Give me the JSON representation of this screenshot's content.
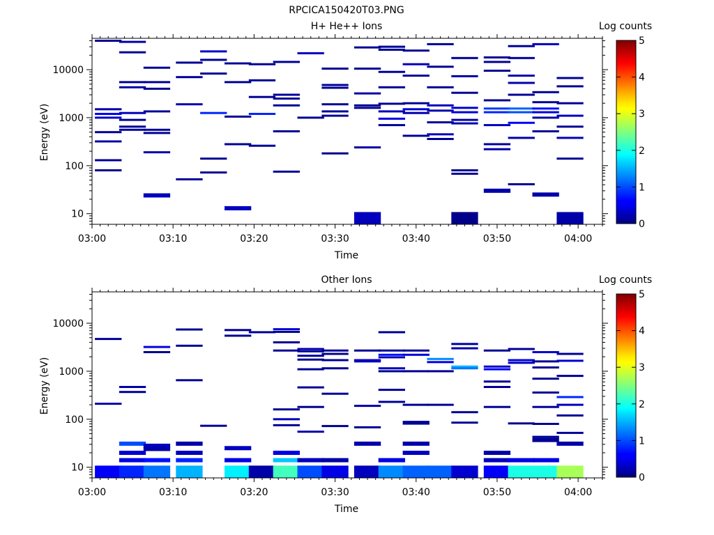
{
  "figure": {
    "title": "RPCICA150420T03.PNG"
  },
  "colorbar": {
    "label": "Log counts",
    "ticks": [
      "0",
      "1",
      "2",
      "3",
      "4",
      "5"
    ],
    "range": [
      0,
      5
    ],
    "colormap": "jet"
  },
  "chart_data": [
    {
      "type": "heatmap",
      "title": "H+ He++ Ions",
      "xlabel": "Time",
      "ylabel": "Energy (eV)",
      "yscale": "log",
      "ylim": [
        6,
        45000
      ],
      "xlim": [
        "03:00",
        "04:03"
      ],
      "x_ticks": [
        "03:00",
        "03:10",
        "03:20",
        "03:30",
        "03:40",
        "03:50",
        "04:00"
      ],
      "y_ticks": [
        "10",
        "100",
        "1000",
        "10000"
      ],
      "time_bins": [
        "03:02",
        "03:05",
        "03:08",
        "03:12",
        "03:15",
        "03:18",
        "03:21",
        "03:24",
        "03:27",
        "03:30",
        "03:34",
        "03:37",
        "03:40",
        "03:43",
        "03:46",
        "03:50",
        "03:53",
        "03:56",
        "03:59",
        "04:02"
      ],
      "cells": [
        [
          0,
          40000,
          0.1
        ],
        [
          0,
          1500,
          0.2
        ],
        [
          0,
          1200,
          0.6
        ],
        [
          0,
          1000,
          0.4
        ],
        [
          0,
          500,
          0.1
        ],
        [
          0,
          320,
          0.2
        ],
        [
          0,
          130,
          0.1
        ],
        [
          0,
          80,
          0.05
        ],
        [
          1,
          38000,
          0.2
        ],
        [
          1,
          23000,
          0.1
        ],
        [
          1,
          5500,
          0.1
        ],
        [
          1,
          4300,
          0.2
        ],
        [
          1,
          1250,
          0.3
        ],
        [
          1,
          900,
          0.1
        ],
        [
          1,
          650,
          0.1
        ],
        [
          1,
          560,
          0.2
        ],
        [
          2,
          11000,
          0.1
        ],
        [
          2,
          5500,
          0.1
        ],
        [
          2,
          4000,
          0.1
        ],
        [
          2,
          1350,
          0.1
        ],
        [
          2,
          560,
          0.1
        ],
        [
          2,
          480,
          0.1
        ],
        [
          2,
          190,
          0.2
        ],
        [
          2,
          24,
          0.3
        ],
        [
          3,
          14000,
          0.1
        ],
        [
          3,
          7000,
          0.1
        ],
        [
          3,
          1900,
          0.2
        ],
        [
          3,
          52,
          0.1
        ],
        [
          4,
          24000,
          0.4
        ],
        [
          4,
          16000,
          0.1
        ],
        [
          4,
          8300,
          0.1
        ],
        [
          4,
          1250,
          0.8
        ],
        [
          4,
          140,
          0.1
        ],
        [
          4,
          72,
          0.1
        ],
        [
          5,
          13500,
          0.1
        ],
        [
          5,
          5500,
          0.1
        ],
        [
          5,
          1050,
          0.1
        ],
        [
          5,
          280,
          0.1
        ],
        [
          5,
          13,
          0.3
        ],
        [
          6,
          13000,
          0.1
        ],
        [
          6,
          6000,
          0.1
        ],
        [
          6,
          2700,
          0.1
        ],
        [
          6,
          1200,
          0.8
        ],
        [
          6,
          260,
          0.1
        ],
        [
          7,
          14500,
          0.1
        ],
        [
          7,
          3000,
          0.1
        ],
        [
          7,
          2500,
          0.1
        ],
        [
          7,
          1800,
          0.1
        ],
        [
          7,
          520,
          0.1
        ],
        [
          7,
          75,
          0.1
        ],
        [
          8,
          22000,
          0.3
        ],
        [
          8,
          1000,
          0.1
        ],
        [
          9,
          10500,
          0.1
        ],
        [
          9,
          4800,
          0.1
        ],
        [
          9,
          4200,
          0.1
        ],
        [
          9,
          1900,
          0.1
        ],
        [
          9,
          1350,
          0.1
        ],
        [
          9,
          1100,
          0.1
        ],
        [
          9,
          180,
          0.05
        ],
        [
          10,
          29000,
          0.1
        ],
        [
          10,
          10500,
          0.1
        ],
        [
          10,
          3200,
          0.2
        ],
        [
          10,
          1800,
          0.1
        ],
        [
          10,
          1600,
          0.1
        ],
        [
          10,
          240,
          0.2
        ],
        [
          10,
          8.5,
          0.3
        ],
        [
          11,
          30000,
          0.1
        ],
        [
          11,
          26000,
          0.1
        ],
        [
          11,
          9000,
          0.1
        ],
        [
          11,
          4300,
          0.1
        ],
        [
          11,
          1950,
          0.1
        ],
        [
          11,
          1350,
          0.3
        ],
        [
          11,
          950,
          0.5
        ],
        [
          11,
          700,
          0.1
        ],
        [
          12,
          25000,
          0.1
        ],
        [
          12,
          13000,
          0.3
        ],
        [
          12,
          7500,
          0.1
        ],
        [
          12,
          2000,
          0.1
        ],
        [
          12,
          1500,
          0.4
        ],
        [
          12,
          1250,
          0.2
        ],
        [
          12,
          420,
          0.1
        ],
        [
          13,
          34000,
          0.1
        ],
        [
          13,
          11500,
          0.1
        ],
        [
          13,
          4300,
          0.1
        ],
        [
          13,
          1800,
          0.3
        ],
        [
          13,
          1400,
          0.2
        ],
        [
          13,
          800,
          0.1
        ],
        [
          13,
          450,
          0.3
        ],
        [
          13,
          360,
          0.1
        ],
        [
          14,
          17500,
          0.1
        ],
        [
          14,
          7300,
          0.2
        ],
        [
          14,
          3300,
          0.1
        ],
        [
          14,
          1600,
          0.4
        ],
        [
          14,
          1300,
          0.5
        ],
        [
          14,
          900,
          0.2
        ],
        [
          14,
          760,
          0.2
        ],
        [
          14,
          80,
          0.1
        ],
        [
          14,
          68,
          0.1
        ],
        [
          14,
          8.5,
          0.05
        ],
        [
          15,
          18000,
          0.1
        ],
        [
          15,
          14500,
          0.1
        ],
        [
          15,
          9500,
          0.1
        ],
        [
          15,
          2300,
          0.1
        ],
        [
          15,
          1550,
          0.9
        ],
        [
          15,
          1300,
          0.8
        ],
        [
          15,
          700,
          0.3
        ],
        [
          15,
          280,
          0.1
        ],
        [
          15,
          220,
          0.2
        ],
        [
          15,
          30,
          0.2
        ],
        [
          16,
          31000,
          0.1
        ],
        [
          16,
          17500,
          0.1
        ],
        [
          16,
          7500,
          0.2
        ],
        [
          16,
          5300,
          0.2
        ],
        [
          16,
          3000,
          0.1
        ],
        [
          16,
          1550,
          1.1
        ],
        [
          16,
          1300,
          1.0
        ],
        [
          16,
          780,
          0.6
        ],
        [
          16,
          380,
          0.2
        ],
        [
          16,
          41,
          0.1
        ],
        [
          17,
          34000,
          0.3
        ],
        [
          17,
          3400,
          0.1
        ],
        [
          17,
          2100,
          0.1
        ],
        [
          17,
          1550,
          0.7
        ],
        [
          17,
          1300,
          0.5
        ],
        [
          17,
          1000,
          0.2
        ],
        [
          17,
          520,
          0.1
        ],
        [
          17,
          25,
          0.2
        ],
        [
          18,
          6700,
          0.1
        ],
        [
          18,
          4500,
          0.1
        ],
        [
          18,
          2000,
          0.1
        ],
        [
          18,
          1100,
          0.3
        ],
        [
          18,
          650,
          0.1
        ],
        [
          18,
          380,
          0.3
        ],
        [
          18,
          140,
          0.1
        ],
        [
          18,
          8.5,
          0.2
        ]
      ]
    },
    {
      "type": "heatmap",
      "title": "Other Ions",
      "xlabel": "Time",
      "ylabel": "Energy (eV)",
      "yscale": "log",
      "ylim": [
        6,
        45000
      ],
      "xlim": [
        "03:00",
        "04:03"
      ],
      "x_ticks": [
        "03:00",
        "03:10",
        "03:20",
        "03:30",
        "03:40",
        "03:50",
        "04:00"
      ],
      "y_ticks": [
        "10",
        "100",
        "1000",
        "10000"
      ],
      "time_bins": [
        "03:02",
        "03:05",
        "03:08",
        "03:12",
        "03:15",
        "03:18",
        "03:21",
        "03:24",
        "03:27",
        "03:30",
        "03:34",
        "03:37",
        "03:40",
        "03:43",
        "03:46",
        "03:50",
        "03:53",
        "03:56",
        "03:59",
        "04:02"
      ],
      "cells": [
        [
          0,
          4700,
          0.1
        ],
        [
          0,
          210,
          0.2
        ],
        [
          0,
          9,
          0.6
        ],
        [
          1,
          470,
          0.2
        ],
        [
          1,
          370,
          0.1
        ],
        [
          1,
          31,
          1.0
        ],
        [
          1,
          20,
          0.4
        ],
        [
          1,
          14,
          0.5
        ],
        [
          1,
          9,
          0.8
        ],
        [
          2,
          3200,
          0.5
        ],
        [
          2,
          2500,
          0.1
        ],
        [
          2,
          28,
          0.3
        ],
        [
          2,
          24,
          0.2
        ],
        [
          2,
          14,
          0.7
        ],
        [
          2,
          9,
          1.2
        ],
        [
          3,
          7400,
          0.1
        ],
        [
          3,
          3400,
          0.1
        ],
        [
          3,
          650,
          0.1
        ],
        [
          3,
          31,
          0.2
        ],
        [
          3,
          20,
          0.3
        ],
        [
          3,
          14,
          0.8
        ],
        [
          3,
          9,
          1.5
        ],
        [
          4,
          73,
          0.1
        ],
        [
          5,
          7200,
          0.1
        ],
        [
          5,
          5500,
          0.1
        ],
        [
          5,
          25,
          0.3
        ],
        [
          5,
          14,
          0.5
        ],
        [
          5,
          9,
          1.8
        ],
        [
          6,
          6500,
          0.1
        ],
        [
          6,
          9,
          0.2
        ],
        [
          7,
          7500,
          0.4
        ],
        [
          7,
          6600,
          0.1
        ],
        [
          7,
          4000,
          0.1
        ],
        [
          7,
          2700,
          0.1
        ],
        [
          7,
          160,
          0.1
        ],
        [
          7,
          100,
          0.3
        ],
        [
          7,
          75,
          0.1
        ],
        [
          7,
          20,
          0.5
        ],
        [
          7,
          14,
          1.6
        ],
        [
          7,
          9,
          2.2
        ],
        [
          8,
          2900,
          0.2
        ],
        [
          8,
          2600,
          0.1
        ],
        [
          8,
          2100,
          0.1
        ],
        [
          8,
          1750,
          0.1
        ],
        [
          8,
          1100,
          0.1
        ],
        [
          8,
          460,
          0.1
        ],
        [
          8,
          180,
          0.05
        ],
        [
          8,
          55,
          0.2
        ],
        [
          8,
          14,
          0.3
        ],
        [
          8,
          9,
          1.0
        ],
        [
          9,
          2700,
          0.1
        ],
        [
          9,
          2300,
          0.1
        ],
        [
          9,
          1700,
          0.1
        ],
        [
          9,
          1150,
          0.1
        ],
        [
          9,
          340,
          0.1
        ],
        [
          9,
          72,
          0.1
        ],
        [
          9,
          14,
          0.2
        ],
        [
          9,
          9,
          0.5
        ],
        [
          10,
          2700,
          0.1
        ],
        [
          10,
          1700,
          0.3
        ],
        [
          10,
          1600,
          0.3
        ],
        [
          10,
          190,
          0.2
        ],
        [
          10,
          68,
          0.1
        ],
        [
          10,
          31,
          0.2
        ],
        [
          10,
          9,
          0.3
        ],
        [
          11,
          6500,
          0.1
        ],
        [
          11,
          2700,
          0.1
        ],
        [
          11,
          2200,
          0.7
        ],
        [
          11,
          1950,
          0.3
        ],
        [
          11,
          1150,
          0.3
        ],
        [
          11,
          1000,
          0.1
        ],
        [
          11,
          410,
          0.1
        ],
        [
          11,
          230,
          0.1
        ],
        [
          11,
          14,
          0.5
        ],
        [
          11,
          9,
          1.3
        ],
        [
          12,
          2700,
          0.1
        ],
        [
          12,
          2200,
          0.4
        ],
        [
          12,
          1000,
          0.1
        ],
        [
          12,
          200,
          0.1
        ],
        [
          12,
          88,
          0.1
        ],
        [
          12,
          81,
          0.1
        ],
        [
          12,
          31,
          0.2
        ],
        [
          12,
          20,
          0.3
        ],
        [
          12,
          9,
          1.1
        ],
        [
          13,
          1800,
          1.3
        ],
        [
          13,
          1550,
          0.5
        ],
        [
          13,
          1000,
          0.1
        ],
        [
          13,
          200,
          0.1
        ],
        [
          13,
          9,
          1.1
        ],
        [
          14,
          3700,
          0.2
        ],
        [
          14,
          3000,
          0.2
        ],
        [
          14,
          1250,
          1.5
        ],
        [
          14,
          1150,
          1.2
        ],
        [
          14,
          140,
          0.1
        ],
        [
          14,
          85,
          0.1
        ],
        [
          14,
          9,
          0.4
        ],
        [
          15,
          2700,
          0.1
        ],
        [
          15,
          1250,
          0.4
        ],
        [
          15,
          1100,
          0.6
        ],
        [
          15,
          610,
          0.1
        ],
        [
          15,
          470,
          0.1
        ],
        [
          15,
          180,
          0.1
        ],
        [
          15,
          20,
          0.2
        ],
        [
          15,
          14,
          0.3
        ],
        [
          15,
          9,
          0.6
        ],
        [
          16,
          2900,
          0.1
        ],
        [
          16,
          1700,
          0.5
        ],
        [
          16,
          1500,
          0.3
        ],
        [
          16,
          82,
          0.05
        ],
        [
          16,
          14,
          0.5
        ],
        [
          16,
          9,
          2.0
        ],
        [
          17,
          2500,
          0.4
        ],
        [
          17,
          1600,
          0.1
        ],
        [
          17,
          1200,
          0.1
        ],
        [
          17,
          700,
          0.1
        ],
        [
          17,
          360,
          0.1
        ],
        [
          17,
          180,
          0.1
        ],
        [
          17,
          80,
          0.1
        ],
        [
          17,
          43,
          0.1
        ],
        [
          17,
          37,
          0.1
        ],
        [
          17,
          14,
          0.5
        ],
        [
          17,
          9,
          2.0
        ],
        [
          18,
          2300,
          0.1
        ],
        [
          18,
          1650,
          0.4
        ],
        [
          18,
          800,
          0.1
        ],
        [
          18,
          290,
          0.8
        ],
        [
          18,
          200,
          0.3
        ],
        [
          18,
          120,
          0.1
        ],
        [
          18,
          52,
          0.1
        ],
        [
          18,
          31,
          0.2
        ],
        [
          18,
          9,
          2.7
        ]
      ]
    }
  ]
}
